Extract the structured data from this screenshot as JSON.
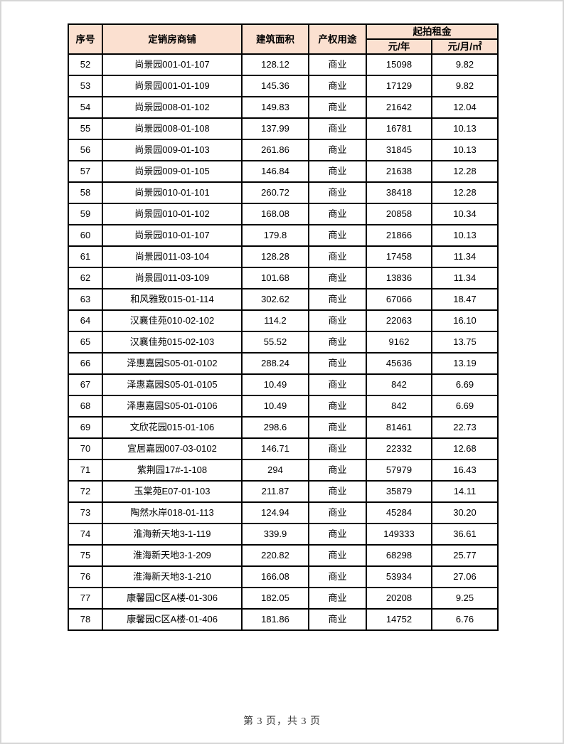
{
  "page": {
    "footer": "第 3 页，共 3 页"
  },
  "colors": {
    "header_bg": "#fbe0d0",
    "table_border": "#000000",
    "page_edge": "#d6d6d6"
  },
  "table": {
    "headers": {
      "seq": "序号",
      "shop": "定销房商铺",
      "area": "建筑面积",
      "usage": "产权用途",
      "rent_group": "起拍租金",
      "rent_year": "元/年",
      "rent_month_sqm": "元/月/㎡"
    },
    "rows": [
      {
        "seq": "52",
        "shop": "尚景园001-01-107",
        "area": "128.12",
        "usage": "商业",
        "rent_year": "15098",
        "rent_month": "9.82"
      },
      {
        "seq": "53",
        "shop": "尚景园001-01-109",
        "area": "145.36",
        "usage": "商业",
        "rent_year": "17129",
        "rent_month": "9.82"
      },
      {
        "seq": "54",
        "shop": "尚景园008-01-102",
        "area": "149.83",
        "usage": "商业",
        "rent_year": "21642",
        "rent_month": "12.04"
      },
      {
        "seq": "55",
        "shop": "尚景园008-01-108",
        "area": "137.99",
        "usage": "商业",
        "rent_year": "16781",
        "rent_month": "10.13"
      },
      {
        "seq": "56",
        "shop": "尚景园009-01-103",
        "area": "261.86",
        "usage": "商业",
        "rent_year": "31845",
        "rent_month": "10.13"
      },
      {
        "seq": "57",
        "shop": "尚景园009-01-105",
        "area": "146.84",
        "usage": "商业",
        "rent_year": "21638",
        "rent_month": "12.28"
      },
      {
        "seq": "58",
        "shop": "尚景园010-01-101",
        "area": "260.72",
        "usage": "商业",
        "rent_year": "38418",
        "rent_month": "12.28"
      },
      {
        "seq": "59",
        "shop": "尚景园010-01-102",
        "area": "168.08",
        "usage": "商业",
        "rent_year": "20858",
        "rent_month": "10.34"
      },
      {
        "seq": "60",
        "shop": "尚景园010-01-107",
        "area": "179.8",
        "usage": "商业",
        "rent_year": "21866",
        "rent_month": "10.13"
      },
      {
        "seq": "61",
        "shop": "尚景园011-03-104",
        "area": "128.28",
        "usage": "商业",
        "rent_year": "17458",
        "rent_month": "11.34"
      },
      {
        "seq": "62",
        "shop": "尚景园011-03-109",
        "area": "101.68",
        "usage": "商业",
        "rent_year": "13836",
        "rent_month": "11.34"
      },
      {
        "seq": "63",
        "shop": "和风雅致015-01-114",
        "area": "302.62",
        "usage": "商业",
        "rent_year": "67066",
        "rent_month": "18.47"
      },
      {
        "seq": "64",
        "shop": "汉襄佳苑010-02-102",
        "area": "114.2",
        "usage": "商业",
        "rent_year": "22063",
        "rent_month": "16.10"
      },
      {
        "seq": "65",
        "shop": "汉襄佳苑015-02-103",
        "area": "55.52",
        "usage": "商业",
        "rent_year": "9162",
        "rent_month": "13.75"
      },
      {
        "seq": "66",
        "shop": "泽惠嘉园S05-01-0102",
        "area": "288.24",
        "usage": "商业",
        "rent_year": "45636",
        "rent_month": "13.19"
      },
      {
        "seq": "67",
        "shop": "泽惠嘉园S05-01-0105",
        "area": "10.49",
        "usage": "商业",
        "rent_year": "842",
        "rent_month": "6.69"
      },
      {
        "seq": "68",
        "shop": "泽惠嘉园S05-01-0106",
        "area": "10.49",
        "usage": "商业",
        "rent_year": "842",
        "rent_month": "6.69"
      },
      {
        "seq": "69",
        "shop": "文欣花园015-01-106",
        "area": "298.6",
        "usage": "商业",
        "rent_year": "81461",
        "rent_month": "22.73"
      },
      {
        "seq": "70",
        "shop": "宜居嘉园007-03-0102",
        "area": "146.71",
        "usage": "商业",
        "rent_year": "22332",
        "rent_month": "12.68"
      },
      {
        "seq": "71",
        "shop": "紫荆园17#-1-108",
        "area": "294",
        "usage": "商业",
        "rent_year": "57979",
        "rent_month": "16.43"
      },
      {
        "seq": "72",
        "shop": "玉棠苑E07-01-103",
        "area": "211.87",
        "usage": "商业",
        "rent_year": "35879",
        "rent_month": "14.11"
      },
      {
        "seq": "73",
        "shop": "陶然水岸018-01-113",
        "area": "124.94",
        "usage": "商业",
        "rent_year": "45284",
        "rent_month": "30.20"
      },
      {
        "seq": "74",
        "shop": "淮海新天地3-1-119",
        "area": "339.9",
        "usage": "商业",
        "rent_year": "149333",
        "rent_month": "36.61"
      },
      {
        "seq": "75",
        "shop": "淮海新天地3-1-209",
        "area": "220.82",
        "usage": "商业",
        "rent_year": "68298",
        "rent_month": "25.77"
      },
      {
        "seq": "76",
        "shop": "淮海新天地3-1-210",
        "area": "166.08",
        "usage": "商业",
        "rent_year": "53934",
        "rent_month": "27.06"
      },
      {
        "seq": "77",
        "shop": "康馨园C区A楼-01-306",
        "area": "182.05",
        "usage": "商业",
        "rent_year": "20208",
        "rent_month": "9.25"
      },
      {
        "seq": "78",
        "shop": "康馨园C区A楼-01-406",
        "area": "181.86",
        "usage": "商业",
        "rent_year": "14752",
        "rent_month": "6.76"
      }
    ]
  }
}
